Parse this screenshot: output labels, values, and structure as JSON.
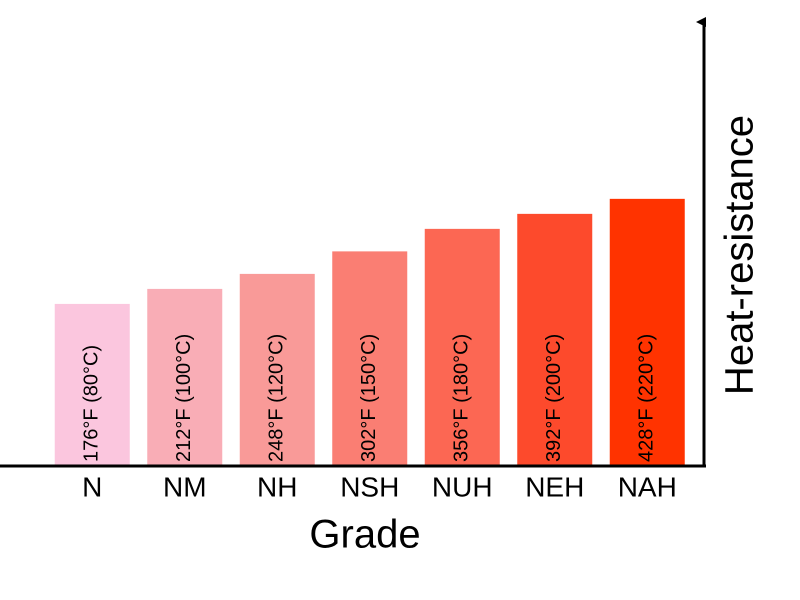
{
  "chart_data": {
    "type": "bar",
    "x_label": "Grade",
    "y_label": "Heat-resistance",
    "categories": [
      "N",
      "NM",
      "NH",
      "NSH",
      "NUH",
      "NEH",
      "NAH"
    ],
    "values": [
      80,
      100,
      120,
      150,
      180,
      200,
      220
    ],
    "value_labels": [
      "176°F (80°C)",
      "212°F (100°C)",
      "248°F (120°C)",
      "302°F (150°C)",
      "356°F (180°C)",
      "392°F (200°C)",
      "428°F (220°C)"
    ],
    "colors": [
      "#fbc6de",
      "#f9adb6",
      "#f99a98",
      "#fa7e73",
      "#fc6753",
      "#fd4a2c",
      "#ff3300"
    ],
    "ylim": [
      -136,
      465
    ]
  }
}
